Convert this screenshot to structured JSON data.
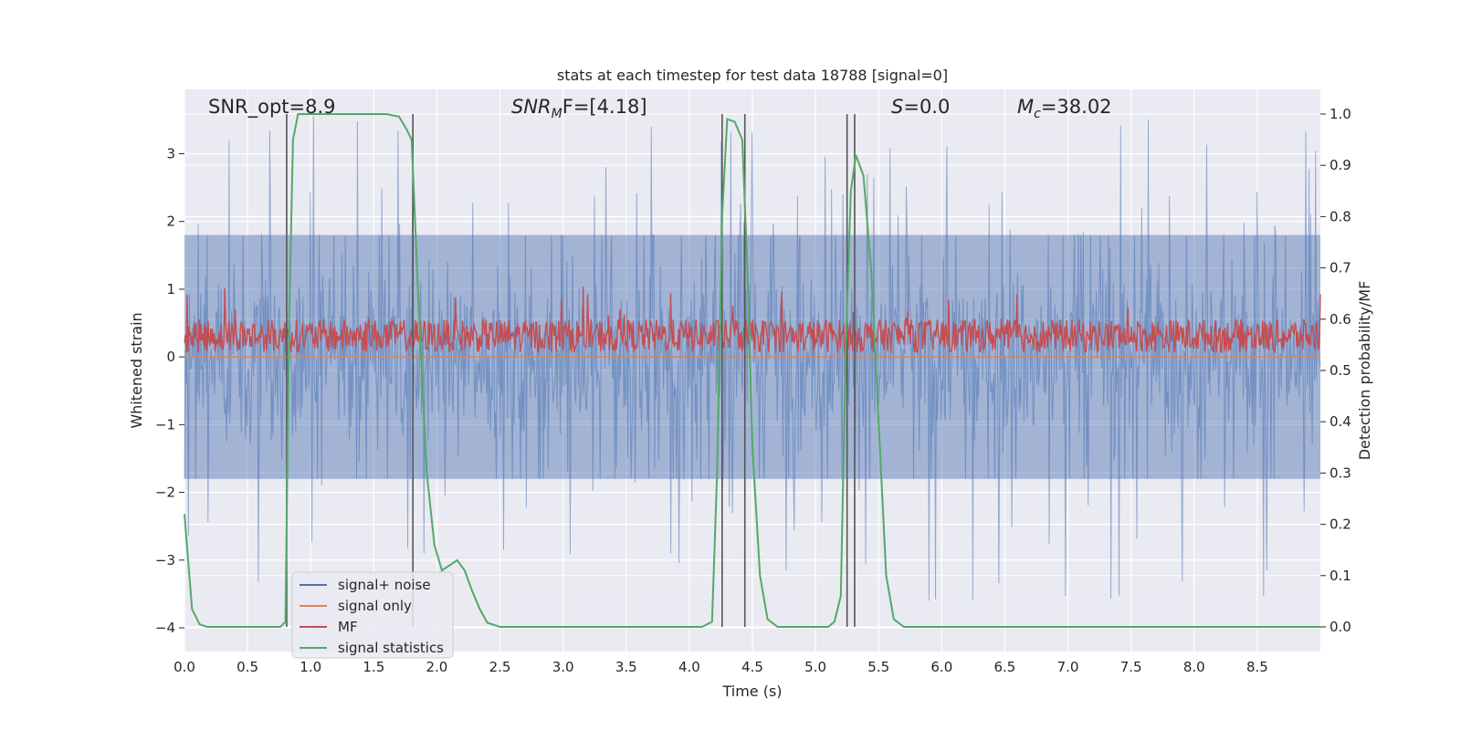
{
  "chart_data": {
    "type": "line",
    "title": "stats at each timestep for test data 18788 [signal=0]",
    "xlabel": "Time (s)",
    "ylabel": "Whitened strain",
    "y2label": "Detection probability/MF",
    "xlim": [
      0.0,
      9.0
    ],
    "ylim": [
      -4.35,
      3.95
    ],
    "y2lim": [
      -0.048,
      1.048
    ],
    "xticks": [
      "0.0",
      "0.5",
      "1.0",
      "1.5",
      "2.0",
      "2.5",
      "3.0",
      "3.5",
      "4.0",
      "4.5",
      "5.0",
      "5.5",
      "6.0",
      "6.5",
      "7.0",
      "7.5",
      "8.0",
      "8.5"
    ],
    "yticks": [
      "3",
      "2",
      "1",
      "0",
      "−1",
      "−2",
      "−3",
      "−4"
    ],
    "y2ticks": [
      "1.0",
      "0.9",
      "0.8",
      "0.7",
      "0.6",
      "0.5",
      "0.4",
      "0.3",
      "0.2",
      "0.1",
      "0.0"
    ],
    "annotations": {
      "snr_opt": "SNR_opt=8.9",
      "snr_mf_main": "SNR",
      "snr_mf_sub": "M",
      "snr_mf_rest": "F=[4.18]",
      "s_main": "S",
      "s_rest": "=0.0",
      "mc_main": "M",
      "mc_sub": "c",
      "mc_rest": "=38.02"
    },
    "legend": {
      "position": "lower-left",
      "entries": [
        "signal+ noise",
        "signal only",
        "MF",
        "signal statistics"
      ]
    },
    "colors": {
      "noise": "#4c72b0",
      "signal_only": "#dd8452",
      "mf": "#c44e52",
      "stat": "#55a868",
      "vline": "#555555",
      "background": "#eaeaf2",
      "grid": "#ffffff"
    },
    "series": [
      {
        "name": "signal statistics",
        "axis": "right",
        "x": [
          0.0,
          0.06,
          0.12,
          0.18,
          0.24,
          0.3,
          0.4,
          0.5,
          0.6,
          0.7,
          0.76,
          0.8,
          0.83,
          0.86,
          0.9,
          0.95,
          1.0,
          1.2,
          1.4,
          1.6,
          1.7,
          1.76,
          1.8,
          1.86,
          1.92,
          1.98,
          2.04,
          2.1,
          2.16,
          2.22,
          2.28,
          2.34,
          2.4,
          2.5,
          2.6,
          3.0,
          3.5,
          4.0,
          4.1,
          4.18,
          4.22,
          4.26,
          4.3,
          4.36,
          4.42,
          4.46,
          4.5,
          4.56,
          4.62,
          4.7,
          4.8,
          5.1,
          5.15,
          5.2,
          5.24,
          5.28,
          5.32,
          5.38,
          5.44,
          5.5,
          5.56,
          5.62,
          5.7,
          5.8,
          6.0,
          7.0,
          8.0,
          9.0
        ],
        "y": [
          0.22,
          0.035,
          0.005,
          0.0,
          0.0,
          0.0,
          0.0,
          0.0,
          0.0,
          0.0,
          0.0,
          0.01,
          0.6,
          0.95,
          1.0,
          1.0,
          1.0,
          1.0,
          1.0,
          1.0,
          0.995,
          0.97,
          0.95,
          0.6,
          0.3,
          0.16,
          0.11,
          0.12,
          0.13,
          0.11,
          0.07,
          0.035,
          0.008,
          0.0,
          0.0,
          0.0,
          0.0,
          0.0,
          0.0,
          0.01,
          0.3,
          0.8,
          0.99,
          0.985,
          0.95,
          0.7,
          0.35,
          0.1,
          0.015,
          0.0,
          0.0,
          0.0,
          0.01,
          0.06,
          0.55,
          0.85,
          0.92,
          0.88,
          0.7,
          0.4,
          0.1,
          0.015,
          0.0,
          0.0,
          0.0,
          0.0,
          0.0,
          0.0
        ]
      },
      {
        "name": "signal+ noise",
        "axis": "left",
        "x_range": [
          0.0,
          9.0
        ],
        "typical_range": [
          -1.8,
          1.8
        ],
        "extreme_range": [
          -4.0,
          3.6
        ]
      },
      {
        "name": "MF",
        "axis": "right",
        "x_range": [
          0.0,
          9.0
        ],
        "typical_range": [
          0.535,
          0.6
        ],
        "spikes_to": 0.665
      },
      {
        "name": "signal only",
        "axis": "left",
        "x_range": [
          0.0,
          9.0
        ],
        "values": [
          0.0
        ]
      }
    ],
    "vertical_lines_x": [
      0.81,
      1.81,
      4.26,
      4.44,
      5.25,
      5.31
    ],
    "vertical_lines_range": [
      0.0,
      1.0
    ]
  }
}
